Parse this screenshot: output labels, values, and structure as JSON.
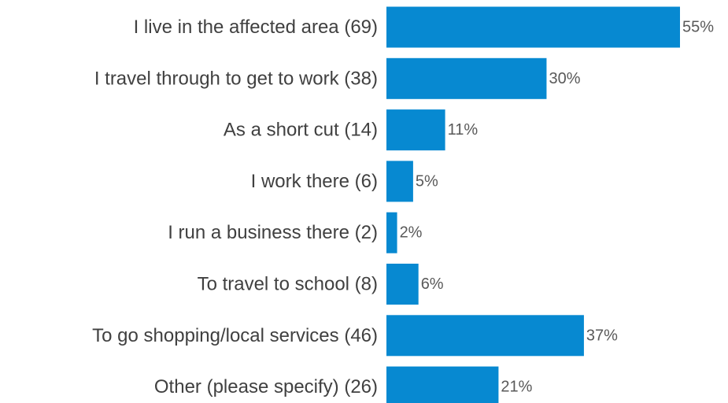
{
  "chart_data": {
    "type": "bar",
    "orientation": "horizontal",
    "categories": [
      "I live in the affected area (69)",
      "I travel through to get to work (38)",
      "As a short cut (14)",
      "I work there  (6)",
      "I run a business there (2)",
      "To travel to school (8)",
      "To go shopping/local services (46)",
      "Other (please specify) (26)"
    ],
    "values": [
      55,
      30,
      11,
      5,
      2,
      6,
      37,
      21
    ],
    "value_labels": [
      "55%",
      "30%",
      "11%",
      "5%",
      "2%",
      "6%",
      "37%",
      "21%"
    ],
    "unit": "%",
    "xlim": [
      0,
      55
    ],
    "grid": false,
    "legend": "none",
    "bar_color": "#0789D1",
    "axis_color": "#404040"
  }
}
